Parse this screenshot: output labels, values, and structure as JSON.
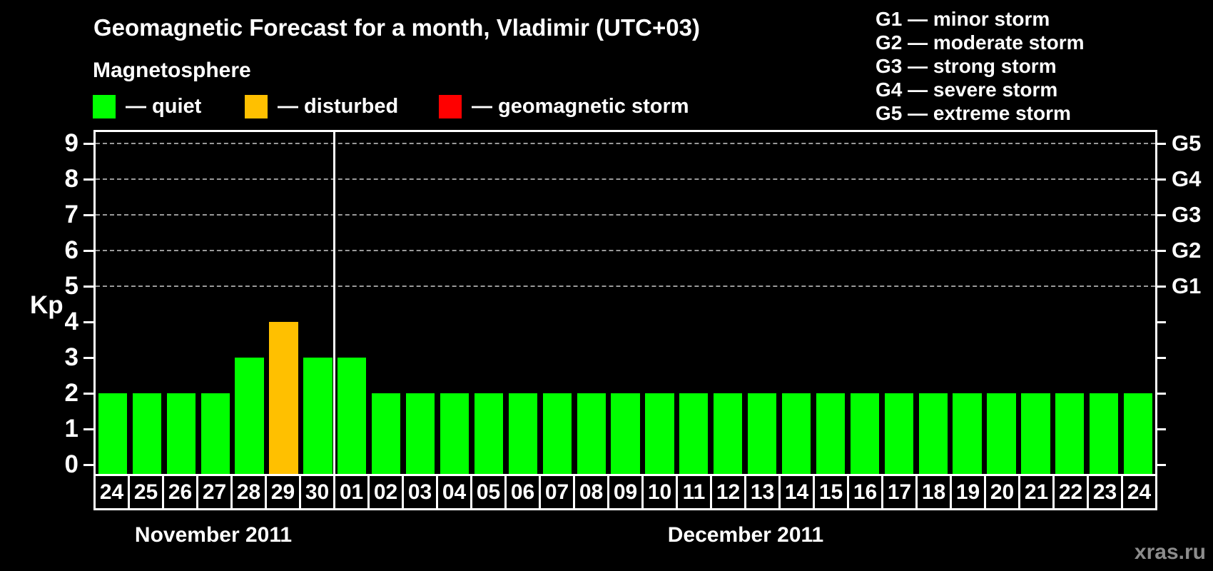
{
  "header": {
    "title": "Geomagnetic Forecast for a month, Vladimir (UTC+03)",
    "subtitle": "Magnetosphere"
  },
  "legend": {
    "items": [
      {
        "label": "— quiet",
        "status": "quiet",
        "color": "#00ff00"
      },
      {
        "label": "— disturbed",
        "status": "disturbed",
        "color": "#ffc000"
      },
      {
        "label": "— geomagnetic storm",
        "status": "storm",
        "color": "#ff0000"
      }
    ]
  },
  "storm_scale_legend": {
    "items": [
      "G1 — minor storm",
      "G2 — moderate storm",
      "G3 — strong storm",
      "G4 — severe storm",
      "G5 — extreme storm"
    ]
  },
  "watermark": "xras.ru",
  "chart_data": {
    "type": "bar",
    "title": "Geomagnetic Forecast for a month, Vladimir (UTC+03)",
    "ylabel": "Kp",
    "ylim": [
      0,
      9.3
    ],
    "y_ticks": [
      0,
      1,
      2,
      3,
      4,
      5,
      6,
      7,
      8,
      9
    ],
    "gridlines_at": [
      5,
      6,
      7,
      8,
      9
    ],
    "grid": "horizontal dashed lines at storm levels only",
    "legend_position": "top",
    "right_axis_labels": [
      {
        "value": 5,
        "label": "G1"
      },
      {
        "value": 6,
        "label": "G2"
      },
      {
        "value": 7,
        "label": "G3"
      },
      {
        "value": 8,
        "label": "G4"
      },
      {
        "value": 9,
        "label": "G5"
      }
    ],
    "months": [
      {
        "label": "November 2011",
        "days": [
          "24",
          "25",
          "26",
          "27",
          "28",
          "29",
          "30"
        ]
      },
      {
        "label": "December 2011",
        "days": [
          "01",
          "02",
          "03",
          "04",
          "05",
          "06",
          "07",
          "08",
          "09",
          "10",
          "11",
          "12",
          "13",
          "14",
          "15",
          "16",
          "17",
          "18",
          "19",
          "20",
          "21",
          "22",
          "23",
          "24"
        ]
      }
    ],
    "categories": [
      "24",
      "25",
      "26",
      "27",
      "28",
      "29",
      "30",
      "01",
      "02",
      "03",
      "04",
      "05",
      "06",
      "07",
      "08",
      "09",
      "10",
      "11",
      "12",
      "13",
      "14",
      "15",
      "16",
      "17",
      "18",
      "19",
      "20",
      "21",
      "22",
      "23",
      "24"
    ],
    "series": [
      {
        "name": "Kp forecast",
        "values": [
          2,
          2,
          2,
          2,
          3,
          4,
          3,
          3,
          2,
          2,
          2,
          2,
          2,
          2,
          2,
          2,
          2,
          2,
          2,
          2,
          2,
          2,
          2,
          2,
          2,
          2,
          2,
          2,
          2,
          2,
          2
        ]
      }
    ],
    "bar_status": [
      "quiet",
      "quiet",
      "quiet",
      "quiet",
      "quiet",
      "disturbed",
      "quiet",
      "quiet",
      "quiet",
      "quiet",
      "quiet",
      "quiet",
      "quiet",
      "quiet",
      "quiet",
      "quiet",
      "quiet",
      "quiet",
      "quiet",
      "quiet",
      "quiet",
      "quiet",
      "quiet",
      "quiet",
      "quiet",
      "quiet",
      "quiet",
      "quiet",
      "quiet",
      "quiet",
      "quiet"
    ]
  }
}
